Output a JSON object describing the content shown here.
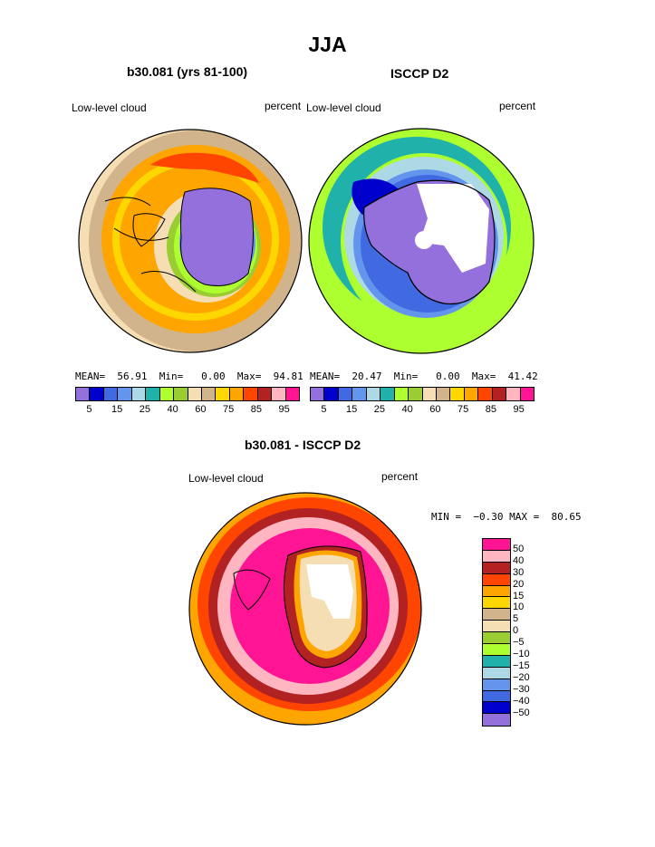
{
  "page_title": "JJA",
  "top_left": {
    "title": "b30.081 (yrs 81-100)",
    "variable": "Low-level cloud",
    "units": "percent",
    "mean_label": "MEAN=",
    "mean": "56.91",
    "min_label": "Min=",
    "min": "0.00",
    "max_label": "Max=",
    "max": "94.81"
  },
  "top_right": {
    "title": "ISCCP D2",
    "variable": "Low-level cloud",
    "units": "percent",
    "mean_label": "MEAN=",
    "mean": "20.47",
    "min_label": "Min=",
    "min": "0.00",
    "max_label": "Max=",
    "max": "41.42"
  },
  "colorbar_top": {
    "colors": [
      "#9370DB",
      "#0000CD",
      "#4169E1",
      "#6495ED",
      "#ADD8E6",
      "#20B2AA",
      "#ADFF2F",
      "#9ACD32",
      "#F5DEB3",
      "#D2B48C",
      "#FFD700",
      "#FFA500",
      "#FF4500",
      "#B22222",
      "#FFB6C1",
      "#FF1493"
    ],
    "labels": [
      "5",
      "15",
      "25",
      "40",
      "60",
      "75",
      "85",
      "95"
    ]
  },
  "bottom": {
    "title": "b30.081 - ISCCP D2",
    "variable": "Low-level cloud",
    "units": "percent",
    "min_label": "MIN =",
    "min": "−0.30",
    "max_label": "MAX =",
    "max": "80.65"
  },
  "colorbar_bottom": {
    "colors": [
      "#FF1493",
      "#FFB6C1",
      "#B22222",
      "#FF4500",
      "#FFA500",
      "#FFD700",
      "#D2B48C",
      "#F5DEB3",
      "#9ACD32",
      "#ADFF2F",
      "#20B2AA",
      "#ADD8E6",
      "#6495ED",
      "#4169E1",
      "#0000CD",
      "#9370DB"
    ],
    "labels": [
      "50",
      "40",
      "30",
      "20",
      "15",
      "10",
      "5",
      "0",
      "−5",
      "−10",
      "−15",
      "−20",
      "−30",
      "−40",
      "−50"
    ]
  }
}
